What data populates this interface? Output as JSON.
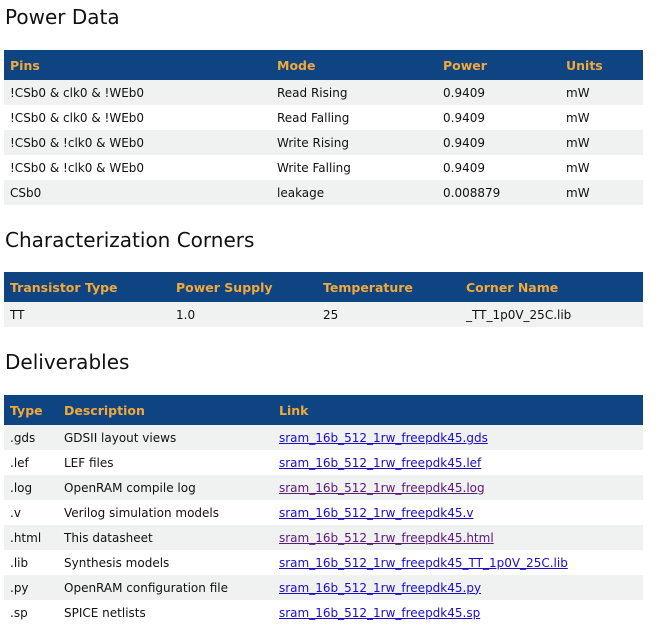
{
  "power": {
    "title": "Power Data",
    "headers": [
      "Pins",
      "Mode",
      "Power",
      "Units"
    ],
    "rows": [
      [
        "!CSb0 & clk0 & !WEb0",
        "Read Rising",
        "0.9409",
        "mW"
      ],
      [
        "!CSb0 & clk0 & !WEb0",
        "Read Falling",
        "0.9409",
        "mW"
      ],
      [
        "!CSb0 & !clk0 & WEb0",
        "Write Rising",
        "0.9409",
        "mW"
      ],
      [
        "!CSb0 & !clk0 & WEb0",
        "Write Falling",
        "0.9409",
        "mW"
      ],
      [
        "CSb0",
        "leakage",
        "0.008879",
        "mW"
      ]
    ]
  },
  "corners": {
    "title": "Characterization Corners",
    "headers": [
      "Transistor Type",
      "Power Supply",
      "Temperature",
      "Corner Name"
    ],
    "rows": [
      [
        "TT",
        "1.0",
        "25",
        "_TT_1p0V_25C.lib"
      ]
    ]
  },
  "deliverables": {
    "title": "Deliverables",
    "headers": [
      "Type",
      "Description",
      "Link"
    ],
    "rows": [
      [
        ".gds",
        "GDSII layout views",
        "sram_16b_512_1rw_freepdk45.gds"
      ],
      [
        ".lef",
        "LEF files",
        "sram_16b_512_1rw_freepdk45.lef"
      ],
      [
        ".log",
        "OpenRAM compile log",
        "sram_16b_512_1rw_freepdk45.log"
      ],
      [
        ".v",
        "Verilog simulation models",
        "sram_16b_512_1rw_freepdk45.v"
      ],
      [
        ".html",
        "This datasheet",
        "sram_16b_512_1rw_freepdk45.html"
      ],
      [
        ".lib",
        "Synthesis models",
        "sram_16b_512_1rw_freepdk45_TT_1p0V_25C.lib"
      ],
      [
        ".py",
        "OpenRAM configuration file",
        "sram_16b_512_1rw_freepdk45.py"
      ],
      [
        ".sp",
        "SPICE netlists",
        "sram_16b_512_1rw_freepdk45.sp"
      ]
    ],
    "visited": [
      false,
      false,
      true,
      false,
      true,
      false,
      false,
      false
    ]
  }
}
